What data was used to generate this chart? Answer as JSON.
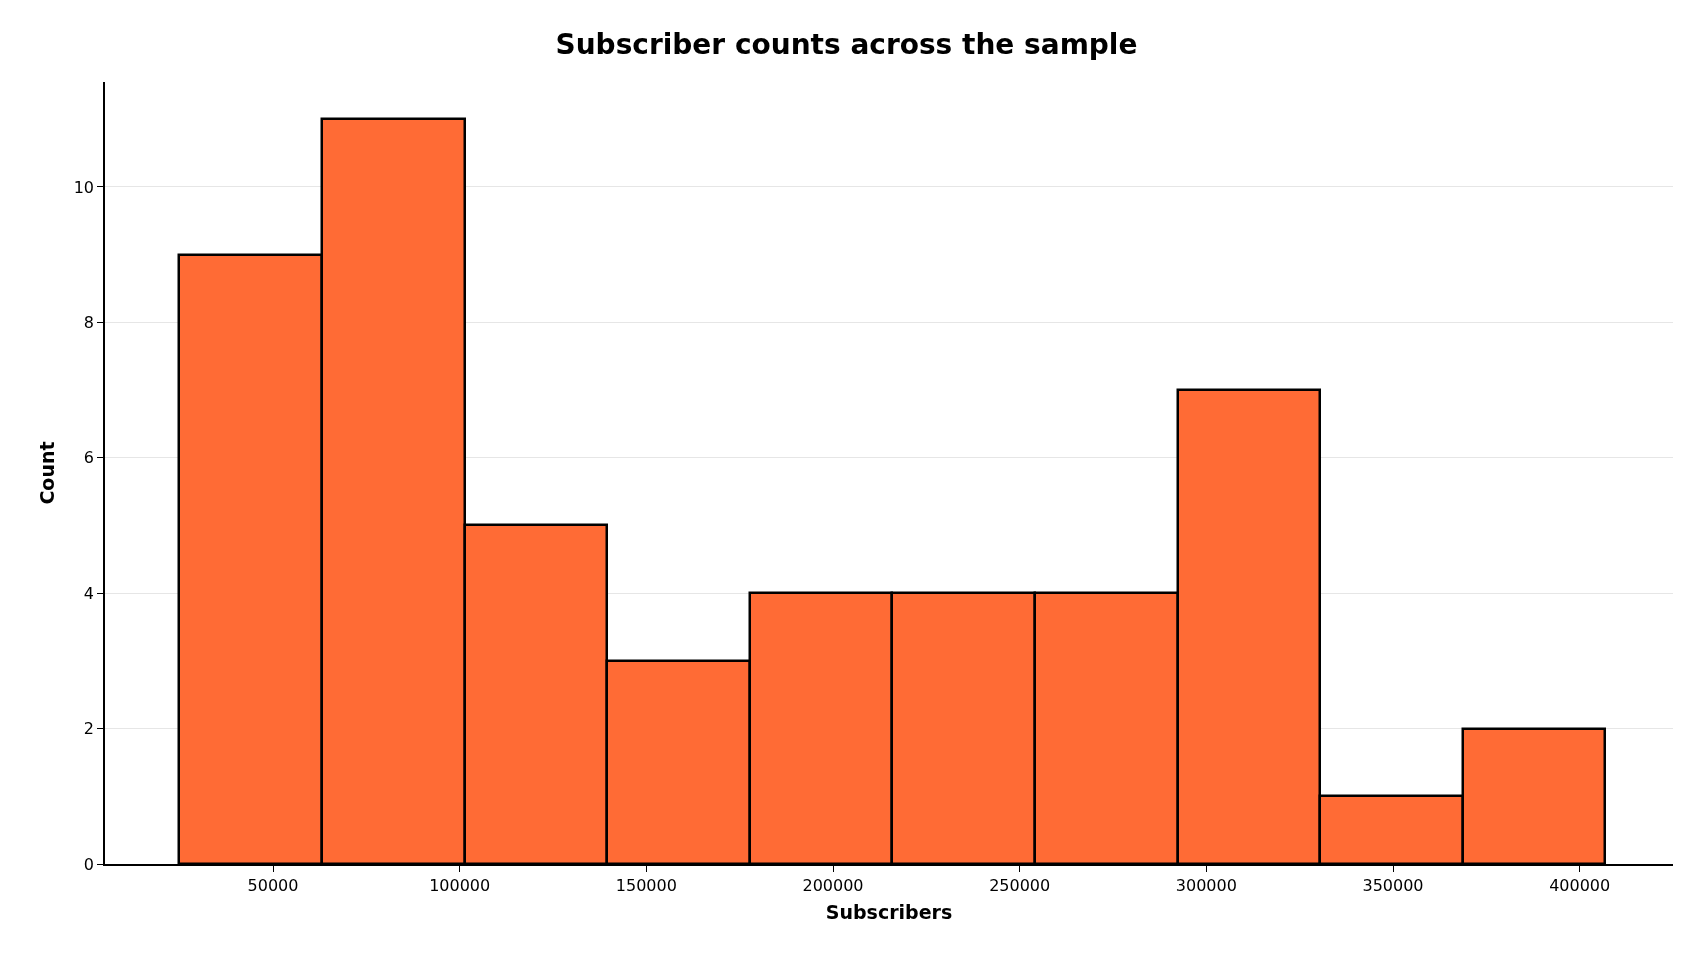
{
  "chart_data": {
    "type": "histogram",
    "title": "Subscriber counts across the sample",
    "xlabel": "Subscribers",
    "ylabel": "Count",
    "bins": [
      24900,
      63100,
      101300,
      139500,
      177700,
      215900,
      254100,
      292300,
      330500,
      368700,
      406900
    ],
    "values": [
      9,
      11,
      5,
      3,
      4,
      4,
      4,
      7,
      1,
      2
    ],
    "color": "#ff6b35",
    "xlim": [
      5000,
      425000
    ],
    "xticks": [
      50000,
      100000,
      150000,
      200000,
      250000,
      300000,
      350000,
      400000
    ],
    "ylim": [
      0,
      11.55
    ],
    "yticks": [
      0,
      2,
      4,
      6,
      8,
      10
    ],
    "grid": "y",
    "legend": false
  }
}
